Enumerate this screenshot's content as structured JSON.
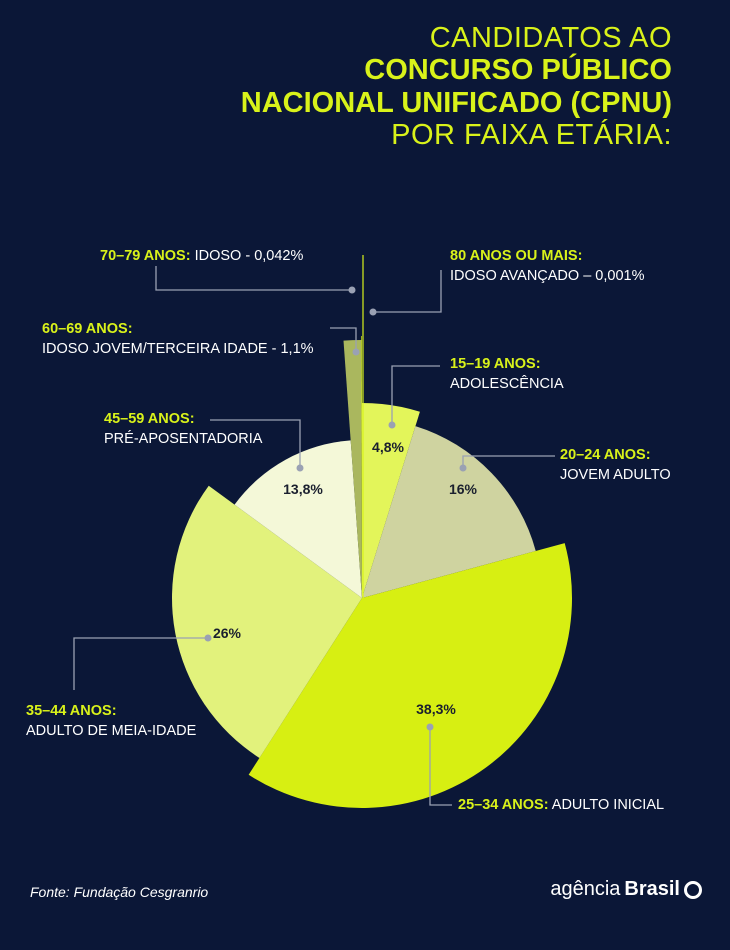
{
  "title": {
    "line1": "CANDIDATOS AO",
    "line2": "CONCURSO PÚBLICO",
    "line3": "NACIONAL UNIFICADO (CPNU)",
    "line4": "POR FAIXA ETÁRIA:"
  },
  "colors": {
    "background": "#0b1737",
    "accent": "#d9f21a"
  },
  "chart_data": {
    "type": "pie",
    "slices": [
      {
        "key": "15_19",
        "range": "15–19 ANOS:",
        "desc": "ADOLESCÊNCIA",
        "value": 4.8,
        "label": "4,8%",
        "color": "#e3f55a"
      },
      {
        "key": "20_24",
        "range": "20–24 ANOS:",
        "desc": "JOVEM ADULTO",
        "value": 16,
        "label": "16%",
        "color": "#cfd3a0"
      },
      {
        "key": "25_34",
        "range": "25–34 ANOS:",
        "desc": "ADULTO INICIAL",
        "value": 38.3,
        "label": "38,3%",
        "color": "#d7ef12"
      },
      {
        "key": "35_44",
        "range": "35–44 ANOS:",
        "desc": "ADULTO DE MEIA-IDADE",
        "value": 26,
        "label": "26%",
        "color": "#e2f27c"
      },
      {
        "key": "45_59",
        "range": "45–59 ANOS:",
        "desc": "PRÉ-APOSENTADORIA",
        "value": 13.8,
        "label": "13,8%",
        "color": "#f4f8d8"
      },
      {
        "key": "60_69",
        "range": "60–69 ANOS:",
        "desc": "IDOSO JOVEM/TERCEIRA IDADE - 1,1%",
        "value": 1.1,
        "label": "",
        "color": "#aab75e"
      },
      {
        "key": "70_79",
        "range": "70–79 ANOS:",
        "desc": "IDOSO -  0,042%",
        "value": 0.042,
        "label": "",
        "color": "#d9f21a"
      },
      {
        "key": "80",
        "range": "80 ANOS OU MAIS:",
        "desc": "IDOSO AVANÇADO – 0,001%",
        "value": 0.001,
        "label": "",
        "color": "#d9f21a"
      }
    ]
  },
  "footer": {
    "source": "Fonte: Fundação Cesgranrio",
    "logo_light": "agência",
    "logo_bold": "Brasil"
  }
}
